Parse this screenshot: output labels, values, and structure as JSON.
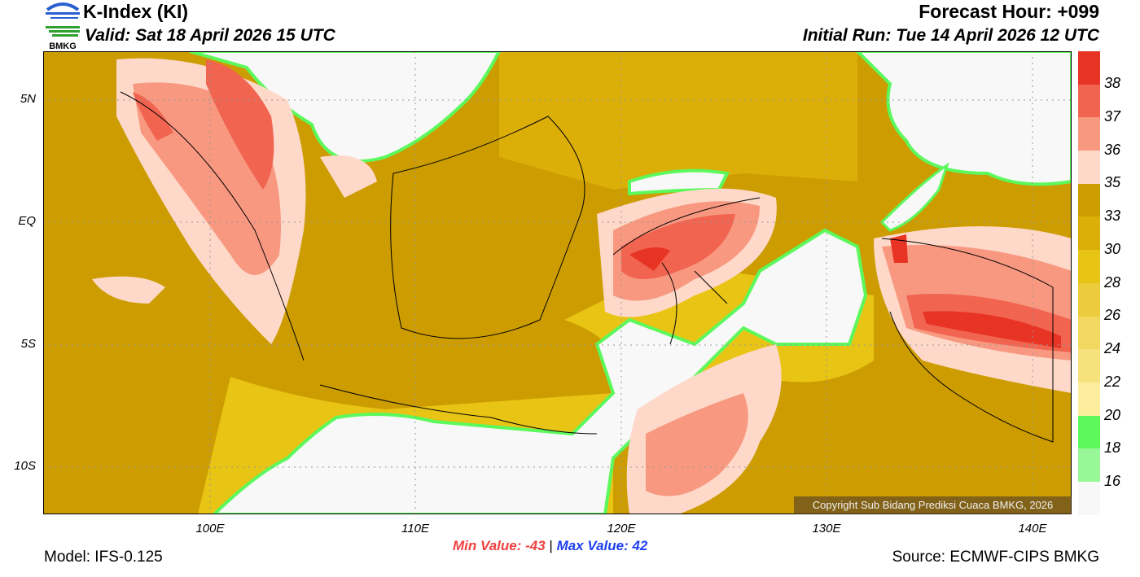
{
  "header": {
    "logo_text": "BMKG",
    "title": "K-Index (KI)",
    "valid": "Valid: Sat 18 April 2026 15 UTC",
    "forecast_hour": "Forecast Hour: +099",
    "initial_run": "Initial Run: Tue 14 April 2026 12 UTC"
  },
  "map": {
    "lat_labels": [
      "5N",
      "EQ",
      "5S",
      "10S"
    ],
    "lon_labels": [
      "100E",
      "110E",
      "120E",
      "130E",
      "140E"
    ],
    "copyright": "Copyright Sub Bidang Prediksi Cuaca BMKG, 2026"
  },
  "colorbar": {
    "labels": [
      "38",
      "37",
      "36",
      "35",
      "33",
      "30",
      "28",
      "26",
      "24",
      "22",
      "20",
      "18",
      "16"
    ],
    "colors": [
      "#e83424",
      "#f06450",
      "#f89880",
      "#fed8c8",
      "#cc9c00",
      "#dcae08",
      "#e8c414",
      "#eccc3c",
      "#f2d860",
      "#f6e27c",
      "#fcee9c",
      "#5cf85c",
      "#98f898",
      "#f8f8f8"
    ]
  },
  "footer": {
    "min_value": "Min Value: -43",
    "separator": "|",
    "max_value": "Max Value:  42",
    "model": "Model: IFS-0.125",
    "source": "Source: ECMWF-CIPS BMKG"
  }
}
